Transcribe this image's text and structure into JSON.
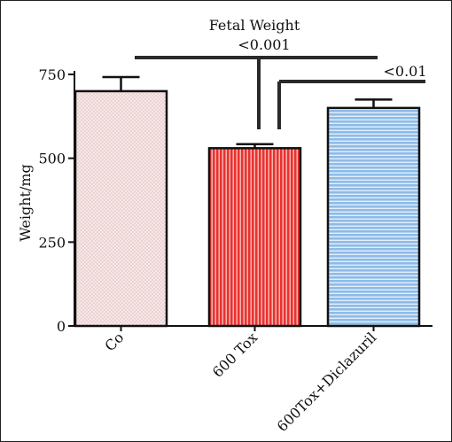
{
  "chart_data": {
    "type": "bar",
    "title": "Fetal Weight",
    "ylabel": "Weight/mg",
    "xlabel": "",
    "categories": [
      "Co",
      "600 Tox",
      "600Tox+Diclazuril"
    ],
    "values": [
      700,
      530,
      650
    ],
    "errors": [
      42,
      12,
      25
    ],
    "ylim": [
      0,
      750
    ],
    "yticks": [
      0,
      250,
      500,
      750
    ],
    "bar_colors": [
      "#f6e6e6",
      "#e8322f",
      "#9ec3ea"
    ],
    "bar_patterns": [
      "crosshatch",
      "vertical-stripes",
      "horizontal-stripes"
    ],
    "annotations": [
      {
        "label": "<0.001",
        "from": "Co",
        "to": "600 Tox"
      },
      {
        "label": "<0.01",
        "from": "600 Tox",
        "to": "600Tox+Diclazuril"
      }
    ],
    "grid": false,
    "legend": "none"
  }
}
